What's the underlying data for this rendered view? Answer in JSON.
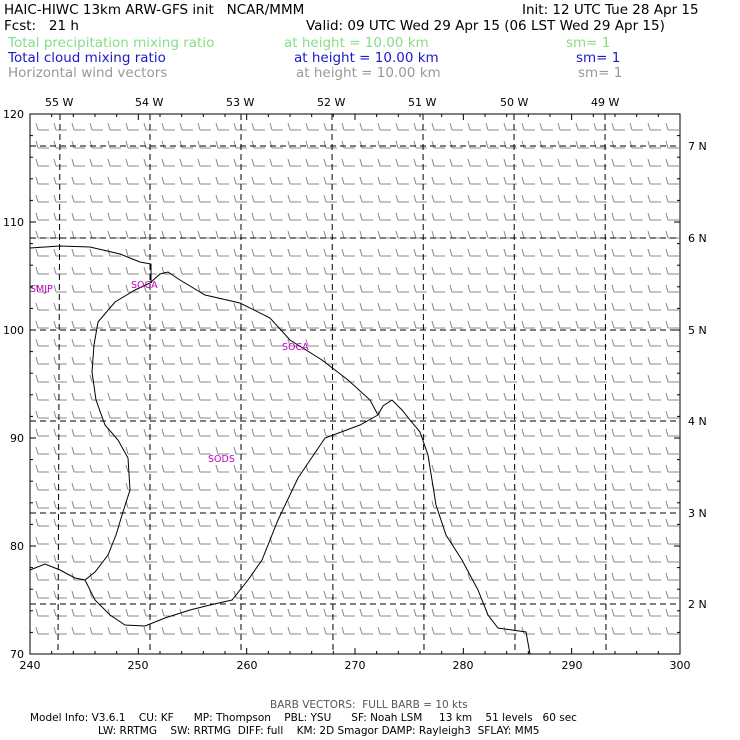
{
  "header": {
    "title_left": "HAIC-HIWC 13km ARW-GFS init   NCAR/MMM",
    "init": "Init: 12 UTC Tue 28 Apr 15",
    "fcst": "Fcst:   21 h",
    "valid": "Valid: 09 UTC Wed 29 Apr 15 (06 LST Wed 29 Apr 15)",
    "fields": [
      {
        "name": "Total precipitation mixing ratio",
        "height": "at height = 10.00 km",
        "sm": "sm= 1",
        "color": "#88dd88"
      },
      {
        "name": "Total cloud mixing ratio",
        "height": "at height = 10.00 km",
        "sm": "sm= 1",
        "color": "#1a1acc"
      },
      {
        "name": "Horizontal wind vectors",
        "height": "at height = 10.00 km",
        "sm": "sm= 1",
        "color": "#999999"
      }
    ]
  },
  "map": {
    "x_ticks": [
      "240",
      "250",
      "260",
      "270",
      "280",
      "290",
      "300"
    ],
    "y_ticks": [
      "70",
      "80",
      "90",
      "100",
      "110",
      "120"
    ],
    "longitude_labels": [
      "55 W",
      "54 W",
      "53 W",
      "52 W",
      "51 W",
      "50 W",
      "49 W"
    ],
    "latitude_labels": [
      "7 N",
      "6 N",
      "5 N",
      "4 N",
      "3 N",
      "2 N"
    ],
    "stations": [
      "SMJP",
      "SOCA",
      "SOCA",
      "SODS"
    ],
    "coast_color": "#000000",
    "barb_color": "#888888",
    "station_color": "#c000c0"
  },
  "footer": {
    "barb_note": "BARB VECTORS:  FULL BARB = 10 kts",
    "line1": "Model Info: V3.6.1    CU: KF      MP: Thompson    PBL: YSU      SF: Noah LSM     13 km    51 levels   60 sec",
    "line2": "LW: RRTMG    SW: RRTMG  DIFF: full    KM: 2D Smagor DAMP: Rayleigh3  SFLAY: MM5"
  }
}
